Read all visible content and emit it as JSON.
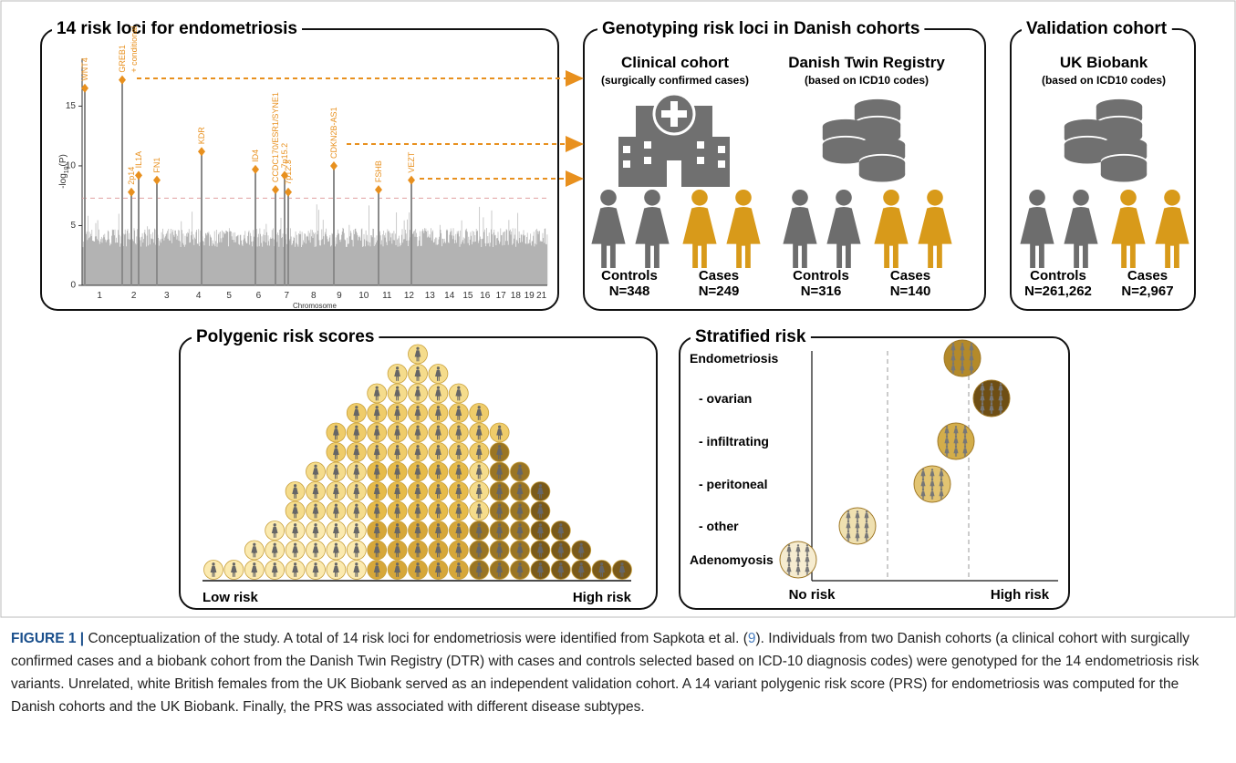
{
  "panels": {
    "loci": {
      "title": "14 risk loci for endometriosis",
      "y_axis_label": "-log",
      "y_axis_sub": "10",
      "y_axis_tail": "(P)",
      "x_axis_label": "Chromosome",
      "yticks": [
        0,
        5,
        10,
        15
      ],
      "ylim": [
        0,
        19
      ],
      "threshold": 7.3,
      "chromosomes": [
        "1",
        "2",
        "3",
        "4",
        "5",
        "6",
        "7",
        "8",
        "9",
        "10",
        "11",
        "12",
        "13",
        "14",
        "15",
        "16",
        "17",
        "18",
        "19",
        "21"
      ],
      "loci": [
        {
          "label": "WNT4",
          "value": 16.5
        },
        {
          "label": "GREB1",
          "value": 17.2
        },
        {
          "label": "2p14",
          "value": 7.8
        },
        {
          "label": "IL1A",
          "value": 9.2
        },
        {
          "label": "FN1",
          "value": 8.8
        },
        {
          "label": "KDR",
          "value": 11.2
        },
        {
          "label": "ID4",
          "value": 9.7
        },
        {
          "label": "CCDC170/ESR1/SYNE1",
          "value": 8.0
        },
        {
          "label": "7p15.2",
          "value": 9.2
        },
        {
          "label": "7p12.3",
          "value": 7.8
        },
        {
          "label": "CDKN2B-AS1",
          "value": 10.0
        },
        {
          "label": "FSHB",
          "value": 8.0
        },
        {
          "label": "VEZT",
          "value": 8.8
        }
      ],
      "conditional": "+ conditional"
    },
    "genotyping": {
      "title": "Genotyping risk loci in Danish cohorts",
      "cohorts": [
        {
          "name": "Clinical cohort",
          "subtitle": "(surgically confirmed cases)",
          "controls_label": "Controls",
          "controls_n": "N=348",
          "cases_label": "Cases",
          "cases_n": "N=249"
        },
        {
          "name": "Danish Twin Registry",
          "subtitle": "(based on ICD10 codes)",
          "controls_label": "Controls",
          "controls_n": "N=316",
          "cases_label": "Cases",
          "cases_n": "N=140"
        }
      ]
    },
    "validation": {
      "title": "Validation cohort",
      "cohort": {
        "name": "UK Biobank",
        "subtitle": "(based on ICD10 codes)",
        "controls_label": "Controls",
        "controls_n": "N=261,262",
        "cases_label": "Cases",
        "cases_n": "N=2,967"
      }
    },
    "prs": {
      "title": "Polygenic risk scores",
      "low": "Low risk",
      "high": "High risk"
    },
    "stratified": {
      "title": "Stratified risk",
      "rows": [
        "Endometriosis",
        "- ovarian",
        "- infiltrating",
        "- peritoneal",
        "- other",
        "Adenomyosis"
      ],
      "low": "No risk",
      "high": "High risk"
    }
  },
  "caption": {
    "label": "FIGURE 1 |",
    "text_before": " Conceptualization of the study. A total of 14 risk loci for endometriosis were identified from Sapkota et al. (",
    "ref": "9",
    "text_after": "). Individuals from two Danish cohorts (a clinical cohort with surgically confirmed cases and a biobank cohort from the Danish Twin Registry (DTR) with cases and controls selected based on ICD-10 diagnosis codes) were genotyped for the 14 endometriosis risk variants. Unrelated, white British females from the UK Biobank served as an independent validation cohort. A 14 variant polygenic risk score (PRS) for endometriosis was computed for the Danish cohorts and the UK Biobank. Finally, the PRS was associated with different disease subtypes."
  }
}
